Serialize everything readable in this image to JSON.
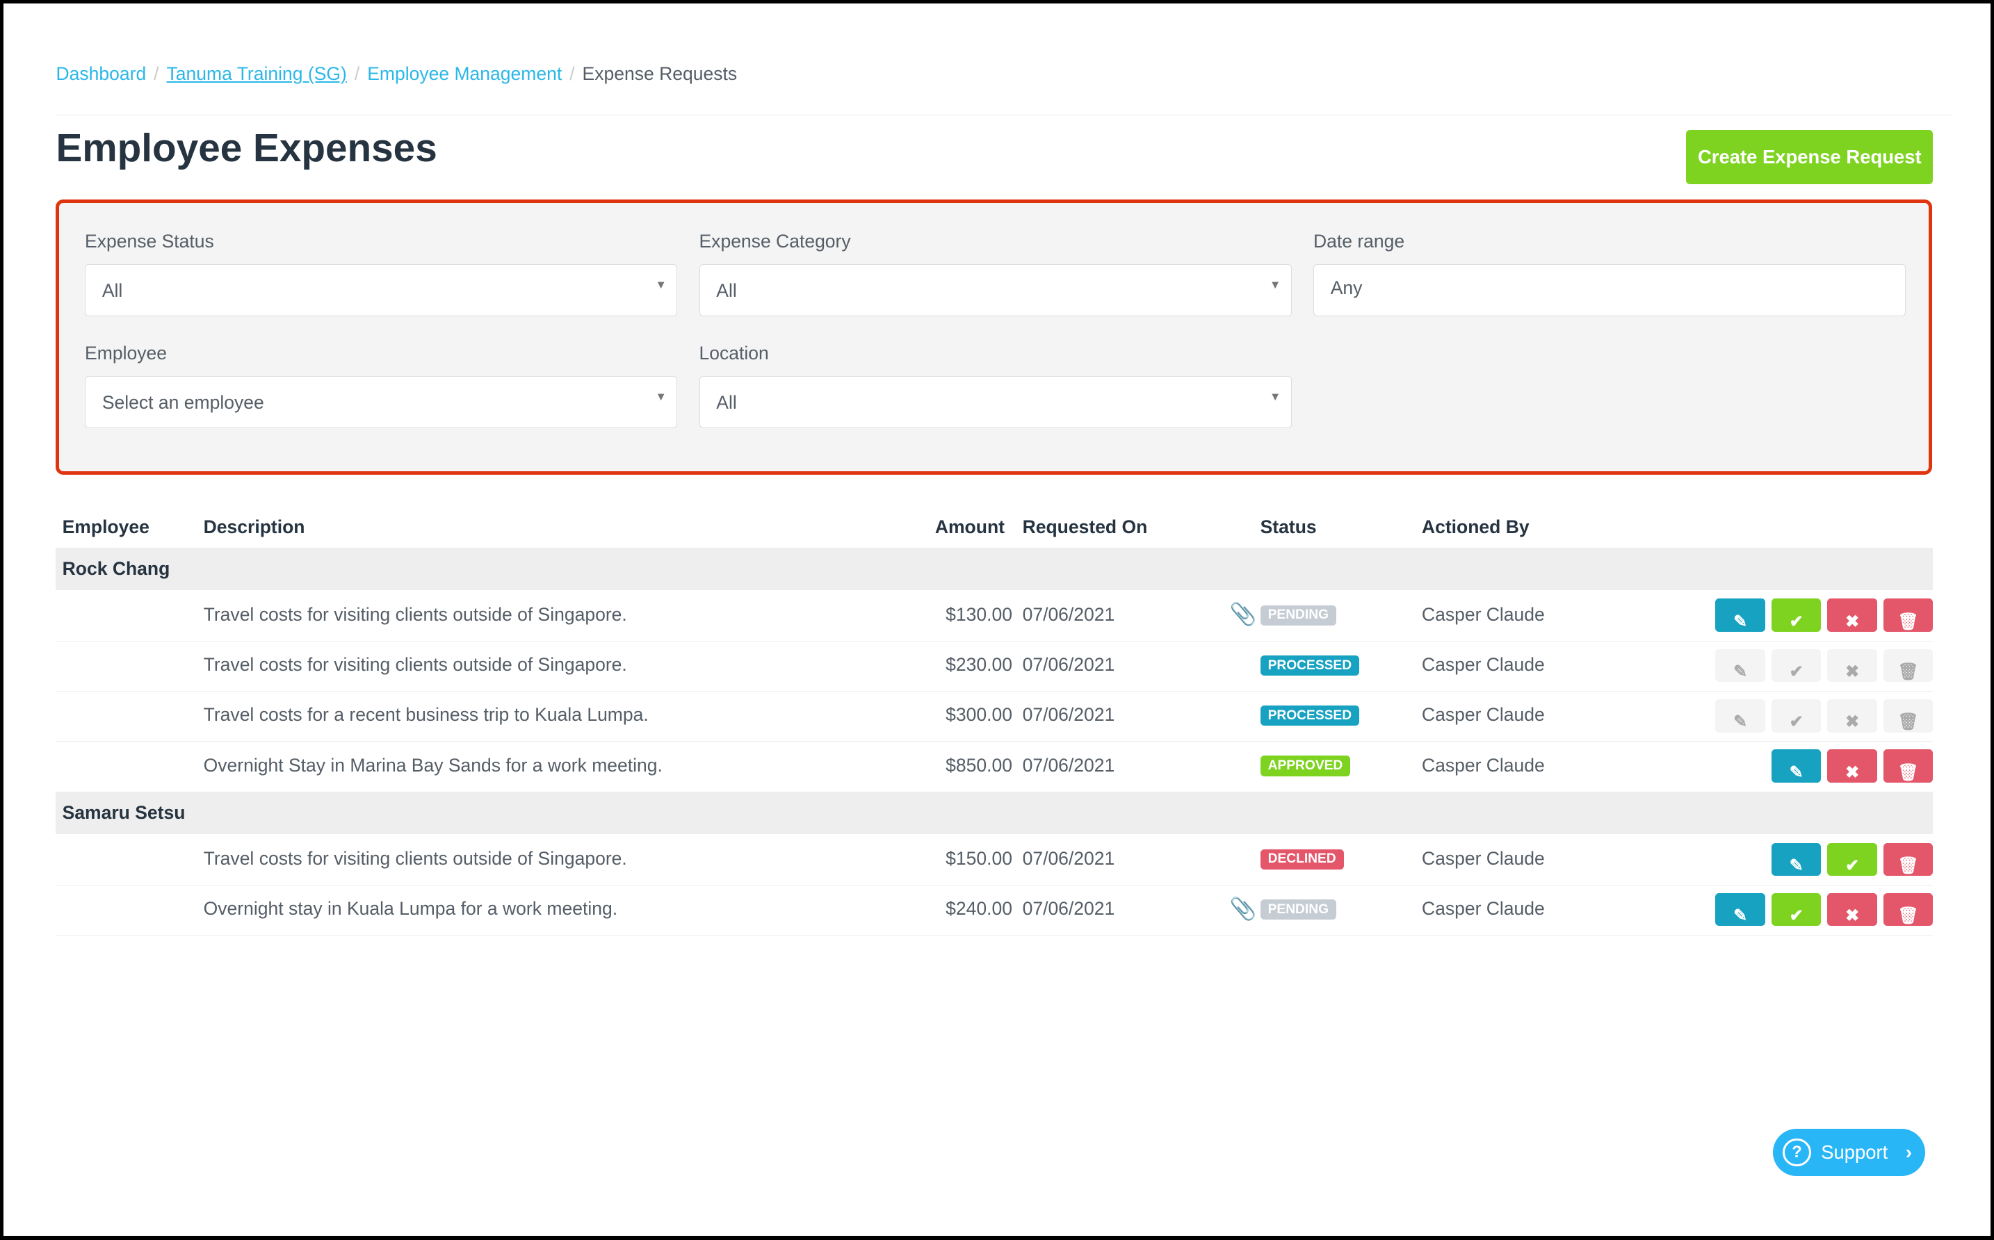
{
  "breadcrumb": {
    "items": [
      "Dashboard",
      "Tanuma Training (SG)",
      "Employee Management"
    ],
    "current": "Expense Requests",
    "separator": "/"
  },
  "title": "Employee Expenses",
  "create_button": "Create Expense Request",
  "filters": {
    "expense_status": {
      "label": "Expense Status",
      "value": "All"
    },
    "expense_category": {
      "label": "Expense Category",
      "value": "All"
    },
    "date_range": {
      "label": "Date range",
      "value": "Any"
    },
    "employee": {
      "label": "Employee",
      "placeholder": "Select an employee"
    },
    "location": {
      "label": "Location",
      "value": "All"
    }
  },
  "table": {
    "headers": [
      "Employee",
      "Description",
      "Amount",
      "Requested On",
      "Status",
      "Actioned By"
    ],
    "groups": [
      {
        "employee": "Rock Chang",
        "rows": [
          {
            "description": "Travel costs for visiting clients outside of Singapore.",
            "amount": "$130.00",
            "requested_on": "07/06/2021",
            "status": "PENDING",
            "attachment": true,
            "actioned_by": "Casper Claude",
            "actions": [
              "edit",
              "approve",
              "decline",
              "delete"
            ],
            "actions_disabled": false
          },
          {
            "description": "Travel costs for visiting clients outside of Singapore.",
            "amount": "$230.00",
            "requested_on": "07/06/2021",
            "status": "PROCESSED",
            "attachment": false,
            "actioned_by": "Casper Claude",
            "actions": [
              "edit",
              "approve",
              "decline",
              "delete"
            ],
            "actions_disabled": true
          },
          {
            "description": "Travel costs for a recent business trip to Kuala Lumpa.",
            "amount": "$300.00",
            "requested_on": "07/06/2021",
            "status": "PROCESSED",
            "attachment": false,
            "actioned_by": "Casper Claude",
            "actions": [
              "edit",
              "approve",
              "decline",
              "delete"
            ],
            "actions_disabled": true
          },
          {
            "description": "Overnight Stay in Marina Bay Sands for a work meeting.",
            "amount": "$850.00",
            "requested_on": "07/06/2021",
            "status": "APPROVED",
            "attachment": false,
            "actioned_by": "Casper Claude",
            "actions": [
              "edit",
              "decline",
              "delete"
            ],
            "actions_disabled": false
          }
        ]
      },
      {
        "employee": "Samaru Setsu",
        "rows": [
          {
            "description": "Travel costs for visiting clients outside of Singapore.",
            "amount": "$150.00",
            "requested_on": "07/06/2021",
            "status": "DECLINED",
            "attachment": false,
            "actioned_by": "Casper Claude",
            "actions": [
              "edit",
              "approve",
              "delete"
            ],
            "actions_disabled": false
          },
          {
            "description": "Overnight stay in Kuala Lumpa for a work meeting.",
            "amount": "$240.00",
            "requested_on": "07/06/2021",
            "status": "PENDING",
            "attachment": true,
            "actioned_by": "Casper Claude",
            "actions": [
              "edit",
              "approve",
              "decline",
              "delete"
            ],
            "actions_disabled": false
          }
        ]
      }
    ]
  },
  "support_label": "Support",
  "colors": {
    "PENDING": "#c6ccd4",
    "PROCESSED": "#17a2c2",
    "APPROVED": "#7ed321",
    "DECLINED": "#e4566a",
    "edit": "#17a2c2",
    "approve": "#7ed321",
    "decline": "#e4566a",
    "delete": "#e4566a"
  }
}
